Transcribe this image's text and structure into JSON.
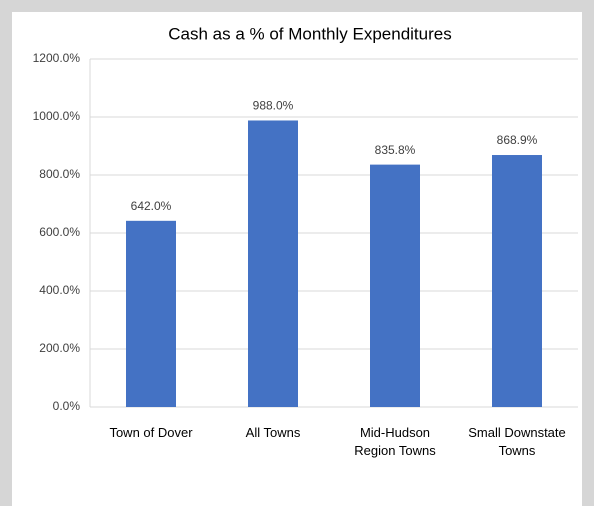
{
  "chart_data": {
    "type": "bar",
    "title": "Cash as a % of Monthly Expenditures",
    "categories": [
      "Town of Dover",
      "All Towns",
      "Mid-Hudson Region Towns",
      "Small Downstate Towns"
    ],
    "values": [
      642,
      988,
      835.8,
      868.9
    ],
    "value_labels": [
      "642.0%",
      "988.0%",
      "835.8%",
      "868.9%"
    ],
    "color": "#4472c4",
    "ylim": [
      0,
      1200
    ],
    "yticks": [
      {
        "value": 0,
        "label": "0.0%"
      },
      {
        "value": 200,
        "label": "200.0%"
      },
      {
        "value": 400,
        "label": "400.0%"
      },
      {
        "value": 600,
        "label": "600.0%"
      },
      {
        "value": 800,
        "label": "800.0%"
      },
      {
        "value": 1000,
        "label": "1000.0%"
      },
      {
        "value": 1200,
        "label": "1200.0%"
      }
    ],
    "grid": true
  }
}
